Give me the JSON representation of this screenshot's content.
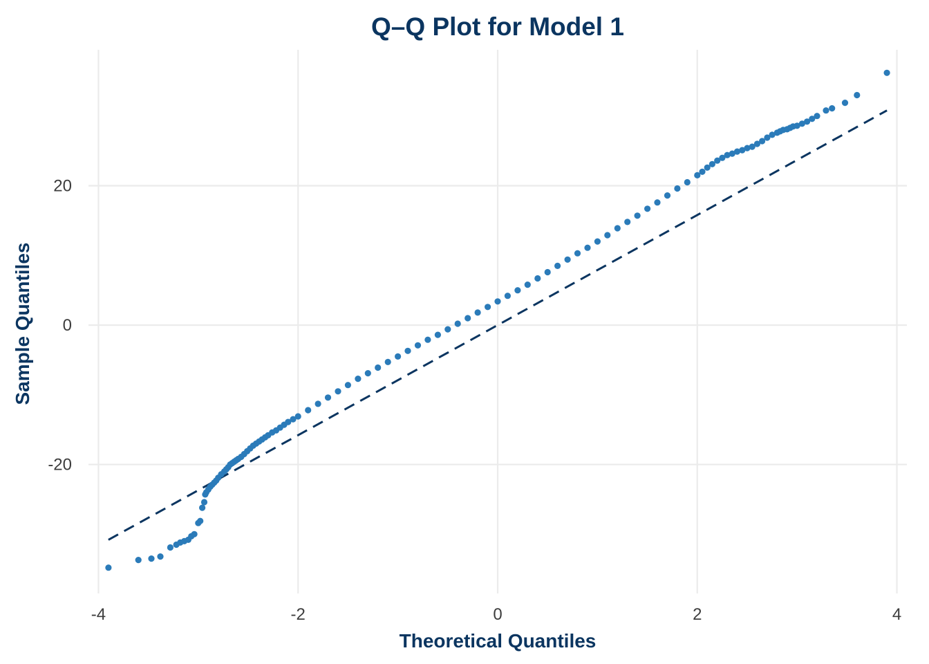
{
  "chart_data": {
    "type": "scatter",
    "title": "Q–Q Plot for Model 1",
    "xlabel": "Theoretical Quantiles",
    "ylabel": "Sample Quantiles",
    "xlim": [
      -4.1,
      4.1
    ],
    "ylim": [
      -38.5,
      39.5
    ],
    "xticks": [
      -4,
      -2,
      0,
      2,
      4
    ],
    "xtick_labels": [
      "-4",
      "-2",
      "0",
      "2",
      "4"
    ],
    "yticks": [
      -20,
      0,
      20
    ],
    "ytick_labels": [
      "-20",
      "0",
      "20"
    ],
    "grid": true,
    "legend": "none",
    "colors": {
      "points": "#2b7bb9",
      "reference_line": "#0b3560",
      "text": "#0b3560",
      "grid": "#ebebeb"
    },
    "reference_line": {
      "style": "dashed",
      "x": [
        -3.9,
        3.9
      ],
      "y": [
        -30.8,
        30.8
      ]
    },
    "series": [
      {
        "x": [
          -3.9,
          -3.6,
          -3.47,
          -3.38,
          -3.28,
          -3.22,
          -3.18,
          -3.14,
          -3.1,
          -3.07,
          -3.04,
          -3.0,
          -2.98,
          -2.96,
          -2.94,
          -2.93,
          -2.92,
          -2.9,
          -2.88,
          -2.86,
          -2.84,
          -2.82,
          -2.8,
          -2.77,
          -2.74,
          -2.72,
          -2.7,
          -2.68,
          -2.66,
          -2.64,
          -2.62,
          -2.6,
          -2.57,
          -2.54,
          -2.51,
          -2.48,
          -2.45,
          -2.42,
          -2.39,
          -2.36,
          -2.33,
          -2.3,
          -2.26,
          -2.22,
          -2.18,
          -2.14,
          -2.1,
          -2.05,
          -2.0,
          -1.9,
          -1.8,
          -1.7,
          -1.6,
          -1.5,
          -1.4,
          -1.3,
          -1.2,
          -1.1,
          -1.0,
          -0.9,
          -0.8,
          -0.7,
          -0.6,
          -0.5,
          -0.4,
          -0.3,
          -0.2,
          -0.1,
          0.0,
          0.1,
          0.2,
          0.3,
          0.4,
          0.5,
          0.6,
          0.7,
          0.8,
          0.9,
          1.0,
          1.1,
          1.2,
          1.3,
          1.4,
          1.5,
          1.6,
          1.7,
          1.8,
          1.9,
          2.0,
          2.05,
          2.1,
          2.15,
          2.2,
          2.25,
          2.3,
          2.35,
          2.4,
          2.45,
          2.5,
          2.55,
          2.6,
          2.65,
          2.7,
          2.75,
          2.8,
          2.83,
          2.86,
          2.9,
          2.93,
          2.96,
          3.0,
          3.05,
          3.1,
          3.15,
          3.2,
          3.29,
          3.35,
          3.48,
          3.6,
          3.9
        ],
        "y": [
          -34.8,
          -33.7,
          -33.5,
          -33.2,
          -31.9,
          -31.5,
          -31.2,
          -31.0,
          -30.8,
          -30.3,
          -30.0,
          -28.4,
          -28.1,
          -26.2,
          -25.4,
          -24.3,
          -24.0,
          -23.6,
          -23.2,
          -22.9,
          -22.6,
          -22.3,
          -21.9,
          -21.4,
          -21.0,
          -20.7,
          -20.4,
          -20.0,
          -19.8,
          -19.6,
          -19.4,
          -19.2,
          -18.9,
          -18.5,
          -18.1,
          -17.7,
          -17.3,
          -17.0,
          -16.7,
          -16.4,
          -16.1,
          -15.8,
          -15.4,
          -15.1,
          -14.7,
          -14.3,
          -13.9,
          -13.5,
          -13.1,
          -12.2,
          -11.3,
          -10.4,
          -9.5,
          -8.6,
          -7.7,
          -6.9,
          -6.1,
          -5.3,
          -4.5,
          -3.7,
          -2.9,
          -2.1,
          -1.4,
          -0.6,
          0.2,
          1.0,
          1.8,
          2.6,
          3.4,
          4.2,
          5.0,
          5.8,
          6.7,
          7.6,
          8.5,
          9.4,
          10.3,
          11.1,
          12.0,
          12.9,
          13.9,
          14.8,
          15.7,
          16.7,
          17.6,
          18.6,
          19.6,
          20.5,
          21.5,
          22.0,
          22.6,
          23.1,
          23.6,
          24.0,
          24.4,
          24.6,
          24.9,
          25.1,
          25.4,
          25.6,
          26.0,
          26.4,
          26.9,
          27.3,
          27.6,
          27.8,
          28.0,
          28.1,
          28.3,
          28.5,
          28.6,
          28.9,
          29.2,
          29.6,
          30.0,
          30.8,
          31.1,
          31.9,
          33.0,
          36.2
        ]
      }
    ]
  }
}
